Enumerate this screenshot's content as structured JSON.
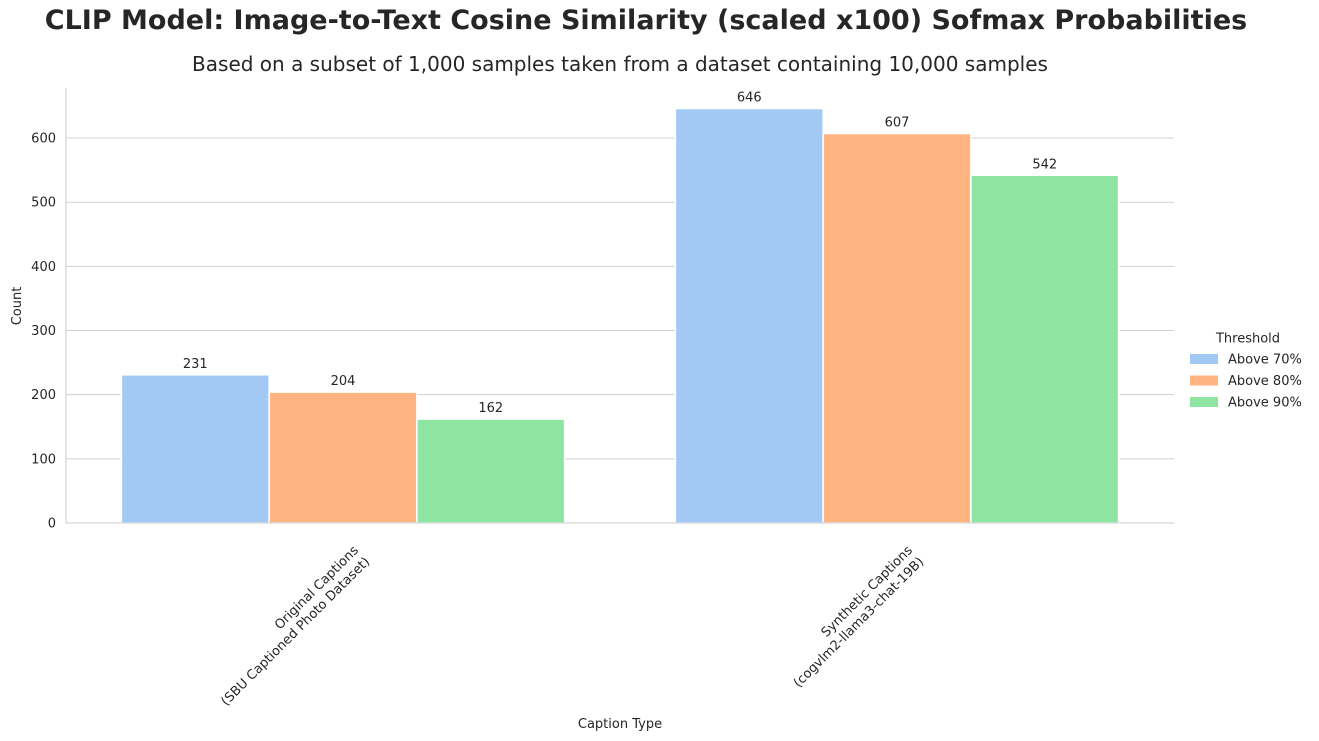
{
  "title": "CLIP Model: Image-to-Text Cosine Similarity (scaled x100) Sofmax Probabilities",
  "subtitle": "Based on a subset of 1,000 samples taken from a dataset containing 10,000 samples",
  "chart_data": {
    "type": "bar",
    "categories": [
      [
        "Original Captions",
        "(SBU Captioned Photo Dataset)"
      ],
      [
        "Synthetic Captions",
        "(cogvlm2-llama3-chat-19B)"
      ]
    ],
    "series": [
      {
        "name": "Above 70%",
        "color": "#a1c9f4",
        "values": [
          231,
          646
        ]
      },
      {
        "name": "Above 80%",
        "color": "#ffb482",
        "values": [
          204,
          607
        ]
      },
      {
        "name": "Above 90%",
        "color": "#8de5a1",
        "values": [
          162,
          542
        ]
      }
    ],
    "xlabel": "Caption Type",
    "ylabel": "Count",
    "ylim": [
      0,
      678
    ],
    "yticks": [
      0,
      100,
      200,
      300,
      400,
      500,
      600
    ],
    "legend_title": "Threshold",
    "legend_position": "right",
    "grid": "horizontal"
  }
}
